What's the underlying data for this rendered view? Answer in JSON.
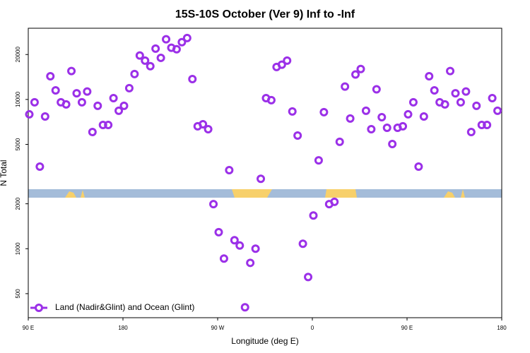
{
  "chart_data": {
    "type": "scatter",
    "title": "15S-10S October (Ver 9)   Inf to -Inf",
    "xlabel": "Longitude (deg E)",
    "ylabel": "N Total",
    "log_y": true,
    "legend": "lower left",
    "xlim": [
      90,
      540
    ],
    "ylim": [
      345,
      30000
    ],
    "xticks": [
      {
        "value": 90,
        "label": "90 E"
      },
      {
        "value": 180,
        "label": "180"
      },
      {
        "value": 270,
        "label": "90 W"
      },
      {
        "value": 360,
        "label": "0"
      },
      {
        "value": 450,
        "label": "90 E"
      },
      {
        "value": 540,
        "label": "180"
      }
    ],
    "yticks": [
      500,
      1000,
      2000,
      5000,
      10000,
      20000
    ],
    "series": [
      {
        "name": "Land (Nadir&Glint) and Ocean (Glint)",
        "color": "#9b30e8",
        "x": [
          91,
          96,
          101,
          106,
          111,
          116,
          121,
          126,
          131,
          136,
          141,
          146,
          151,
          156,
          161,
          166,
          171,
          176,
          181,
          186,
          191,
          196,
          201,
          206,
          211,
          216,
          221,
          226,
          231,
          236,
          241,
          246,
          251,
          256,
          261,
          266,
          271,
          276,
          281,
          286,
          291,
          296,
          301,
          306,
          311,
          316,
          321,
          326,
          331,
          336,
          341,
          346,
          351,
          356,
          361,
          366,
          371,
          376,
          381,
          386,
          391,
          396,
          401,
          406,
          411,
          416,
          421,
          426,
          431,
          436,
          441,
          446,
          451,
          456,
          461,
          466,
          471,
          476,
          481,
          486,
          491,
          496,
          501,
          506,
          511,
          516,
          521,
          526,
          531,
          536
        ],
        "values": [
          7950,
          9570,
          3550,
          7690,
          14300,
          11500,
          9570,
          9270,
          15500,
          11000,
          9570,
          11300,
          6050,
          9070,
          6750,
          6750,
          10200,
          8400,
          9070,
          11900,
          14800,
          19700,
          18200,
          16700,
          21900,
          19000,
          25300,
          22200,
          21700,
          24200,
          25800,
          13700,
          6610,
          6820,
          6320,
          1990,
          1290,
          859,
          3360,
          1140,
          1050,
          405,
          804,
          1000,
          2940,
          10200,
          9890,
          16500,
          17100,
          18200,
          8310,
          5730,
          1080,
          646,
          1670,
          3910,
          8220,
          1990,
          2060,
          5200,
          12200,
          7450,
          14700,
          16000,
          8400,
          6320,
          11700,
          7610,
          6460,
          5030,
          6460,
          6610,
          7950,
          9570,
          3550,
          7690,
          14300,
          11500,
          9570,
          9270,
          15500,
          11000,
          9570,
          11300,
          6050,
          9070,
          6750,
          6750,
          10200,
          8400
        ]
      }
    ]
  }
}
